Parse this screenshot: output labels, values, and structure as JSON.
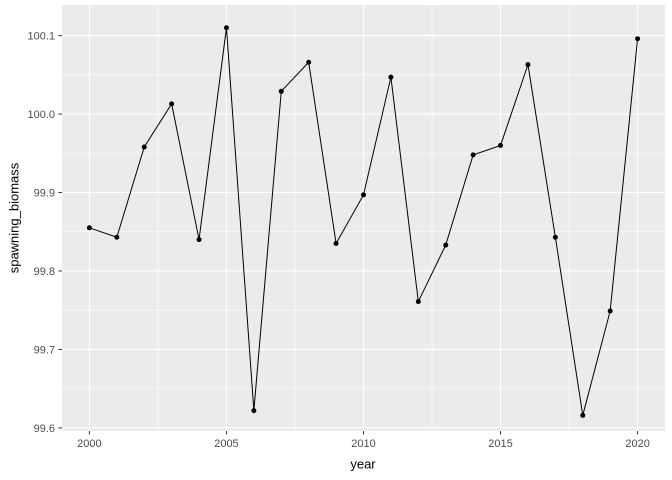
{
  "chart_data": {
    "type": "line",
    "title": "",
    "xlabel": "year",
    "ylabel": "spawning_biomass",
    "x": [
      2000,
      2001,
      2002,
      2003,
      2004,
      2005,
      2006,
      2007,
      2008,
      2009,
      2010,
      2011,
      2012,
      2013,
      2014,
      2015,
      2016,
      2017,
      2018,
      2019,
      2020
    ],
    "values": [
      99.855,
      99.843,
      99.958,
      100.013,
      99.84,
      100.11,
      99.622,
      100.029,
      100.066,
      99.835,
      99.897,
      100.047,
      99.761,
      99.833,
      99.948,
      99.96,
      100.063,
      99.843,
      99.616,
      99.749,
      100.096
    ],
    "x_ticks": [
      2000,
      2005,
      2010,
      2015,
      2020
    ],
    "x_tick_labels": [
      "2000",
      "2005",
      "2010",
      "2015",
      "2020"
    ],
    "y_ticks": [
      99.6,
      99.7,
      99.8,
      99.9,
      100.0,
      100.1
    ],
    "y_tick_labels": [
      "99.6",
      "99.7",
      "99.8",
      "99.9",
      "100.0",
      "100.1"
    ],
    "xlim": [
      1999,
      2021
    ],
    "ylim": [
      99.596,
      100.139
    ],
    "grid": "major+minor",
    "legend": "none",
    "marker": "circle",
    "colors": {
      "page_bg": "#FFFFFF",
      "panel_bg": "#EBEBEB",
      "grid_major": "#FFFFFF",
      "grid_minor": "#FFFFFF",
      "line": "#000000",
      "point": "#000000",
      "axis_text": "#4D4D4D",
      "axis_title": "#000000",
      "tick_mark": "#333333"
    }
  }
}
